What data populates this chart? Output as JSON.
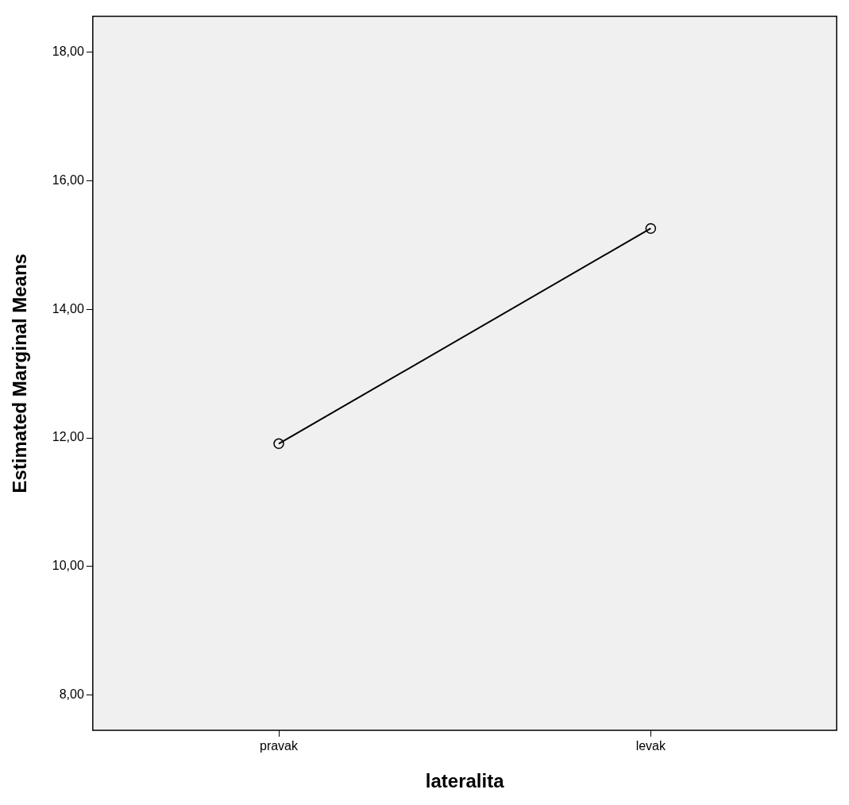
{
  "chart_data": {
    "type": "line",
    "xlabel": "lateralita",
    "ylabel": "Estimated Marginal Means",
    "categories": [
      "pravak",
      "levak"
    ],
    "series": [
      {
        "color": "#000000",
        "values": [
          11.91,
          15.26
        ]
      }
    ],
    "ylim": [
      7.45,
      18.56
    ],
    "yticks": [
      {
        "value": 8,
        "label": "8,00"
      },
      {
        "value": 10,
        "label": "10,00"
      },
      {
        "value": 12,
        "label": "12,00"
      },
      {
        "value": 14,
        "label": "14,00"
      },
      {
        "value": 16,
        "label": "16,00"
      },
      {
        "value": 18,
        "label": "18,00"
      }
    ],
    "marker": "circle",
    "line_style": "solid",
    "legend": false,
    "grid": false
  }
}
